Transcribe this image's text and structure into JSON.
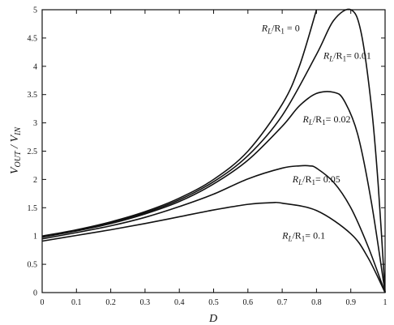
{
  "chart_data": {
    "type": "line",
    "title": "",
    "xlabel": "D",
    "ylabel": "V_OUT / V_IN",
    "xlim": [
      0,
      1
    ],
    "ylim": [
      0,
      5
    ],
    "xticks": [
      "0",
      "0.1",
      "0.2",
      "0.3",
      "0.4",
      "0.5",
      "0.6",
      "0.7",
      "0.8",
      "0.9",
      "1"
    ],
    "yticks": [
      "0",
      "0.5",
      "1",
      "1.5",
      "2",
      "2.5",
      "3",
      "3.5",
      "4",
      "4.5",
      "5"
    ],
    "grid": false,
    "series": [
      {
        "name": "R_L/R_1 = 0",
        "label": {
          "prefix": "R",
          "sub1": "L",
          "mid": "/R",
          "sub2": "1",
          "suffix": " = 0"
        },
        "x": [
          0,
          0.1,
          0.2,
          0.3,
          0.4,
          0.5,
          0.6,
          0.7,
          0.75,
          0.8
        ],
        "y": [
          1.0,
          1.11,
          1.25,
          1.43,
          1.67,
          2.0,
          2.5,
          3.33,
          4.0,
          5.0
        ]
      },
      {
        "name": "R_L/R_1 = 0.01",
        "label": {
          "prefix": "R",
          "sub1": "L",
          "mid": "/R",
          "sub2": "1",
          "suffix": "= 0.01"
        },
        "x": [
          0,
          0.1,
          0.2,
          0.3,
          0.4,
          0.5,
          0.6,
          0.7,
          0.8,
          0.85,
          0.9,
          0.93,
          0.96,
          0.98,
          1.0
        ],
        "y": [
          0.99,
          1.1,
          1.24,
          1.41,
          1.64,
          1.96,
          2.42,
          3.13,
          4.21,
          4.81,
          5.0,
          4.6,
          3.3,
          1.9,
          0.0
        ]
      },
      {
        "name": "R_L/R_1 = 0.02",
        "label": {
          "prefix": "R",
          "sub1": "L",
          "mid": "/R",
          "sub2": "1",
          "suffix": "= 0.02"
        },
        "x": [
          0,
          0.1,
          0.2,
          0.3,
          0.4,
          0.5,
          0.6,
          0.7,
          0.75,
          0.8,
          0.85,
          0.88,
          0.92,
          0.96,
          1.0
        ],
        "y": [
          0.98,
          1.09,
          1.22,
          1.39,
          1.61,
          1.92,
          2.34,
          2.94,
          3.3,
          3.52,
          3.54,
          3.4,
          2.8,
          1.6,
          0.0
        ]
      },
      {
        "name": "R_L/R_1 = 0.05",
        "label": {
          "prefix": "R",
          "sub1": "L",
          "mid": "/R",
          "sub2": "1",
          "suffix": "= 0.05"
        },
        "x": [
          0,
          0.1,
          0.2,
          0.3,
          0.4,
          0.5,
          0.6,
          0.7,
          0.75,
          0.78,
          0.8,
          0.85,
          0.9,
          0.95,
          1.0
        ],
        "y": [
          0.95,
          1.06,
          1.18,
          1.33,
          1.52,
          1.74,
          2.01,
          2.2,
          2.24,
          2.24,
          2.2,
          1.95,
          1.5,
          0.82,
          0.0
        ]
      },
      {
        "name": "R_L/R_1 = 0.1",
        "label": {
          "prefix": "R",
          "sub1": "L",
          "mid": "/R",
          "sub2": "1",
          "suffix": "= 0.1"
        },
        "x": [
          0,
          0.1,
          0.2,
          0.3,
          0.4,
          0.5,
          0.6,
          0.67,
          0.7,
          0.8,
          0.9,
          0.95,
          1.0
        ],
        "y": [
          0.91,
          1.01,
          1.11,
          1.22,
          1.34,
          1.46,
          1.56,
          1.59,
          1.58,
          1.45,
          1.04,
          0.62,
          0.0
        ]
      }
    ]
  }
}
